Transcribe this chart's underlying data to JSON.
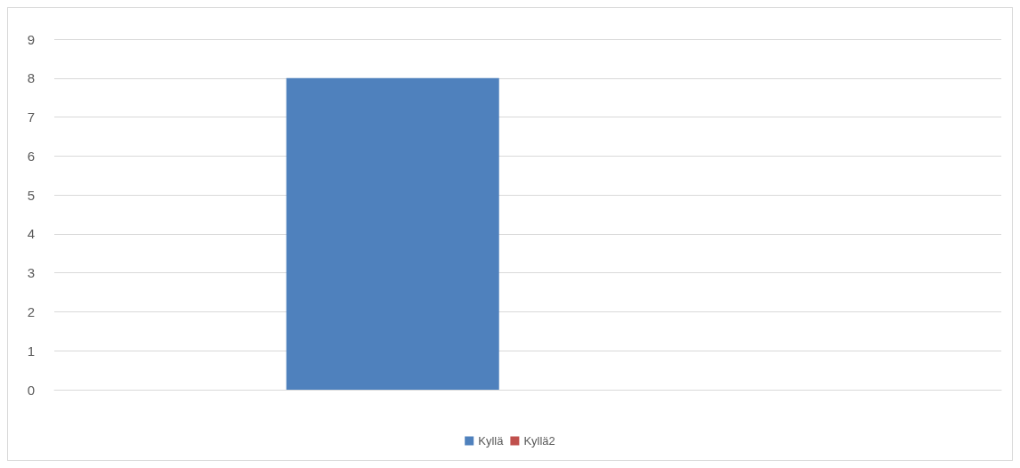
{
  "chart_data": {
    "type": "bar",
    "categories": [
      null
    ],
    "series": [
      {
        "name": "Kyllä",
        "color": "#4f81bd",
        "values": [
          8
        ]
      },
      {
        "name": "Kyllä2",
        "color": "#c0504d",
        "values": [
          0
        ]
      }
    ],
    "ylim": [
      0,
      9
    ],
    "yticks": [
      0,
      1,
      2,
      3,
      4,
      5,
      6,
      7,
      8,
      9
    ],
    "grid": "y",
    "legend": "bottom"
  }
}
